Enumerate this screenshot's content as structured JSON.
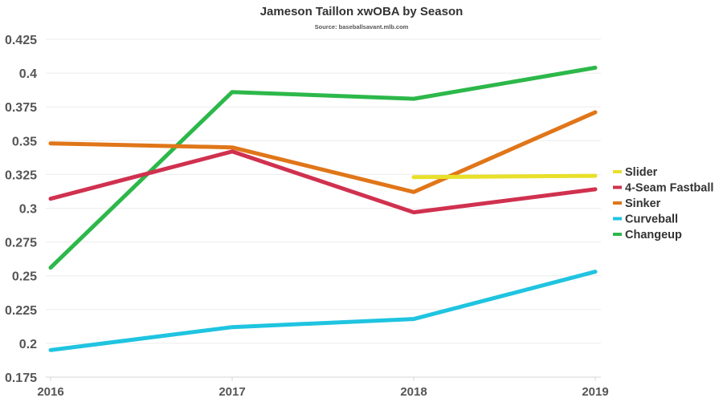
{
  "chart_data": {
    "type": "line",
    "title": "Jameson Taillon xwOBA by Season",
    "subtitle": "Source: baseballsavant.mlb.com",
    "xlabel": "",
    "ylabel": "",
    "x": [
      "2016",
      "2017",
      "2018",
      "2019"
    ],
    "ylim": [
      0.175,
      0.425
    ],
    "yticks": [
      "0.425",
      "0.4",
      "0.375",
      "0.35",
      "0.325",
      "0.3",
      "0.275",
      "0.25",
      "0.225",
      "0.2",
      "0.175"
    ],
    "ytick_values": [
      0.425,
      0.4,
      0.375,
      0.35,
      0.325,
      0.3,
      0.275,
      0.25,
      0.225,
      0.2,
      0.175
    ],
    "grid": true,
    "legend_position": "right",
    "series": [
      {
        "name": "Slider",
        "color": "#e8e02a",
        "values": [
          null,
          null,
          0.323,
          0.324
        ]
      },
      {
        "name": "4-Seam Fastball",
        "color": "#d0314f",
        "values": [
          0.307,
          0.342,
          0.297,
          0.314
        ]
      },
      {
        "name": "Sinker",
        "color": "#e07619",
        "values": [
          0.348,
          0.345,
          0.312,
          0.371
        ]
      },
      {
        "name": "Curveball",
        "color": "#1fc4e0",
        "values": [
          0.195,
          0.212,
          0.218,
          0.253
        ]
      },
      {
        "name": "Changeup",
        "color": "#2cb84a",
        "values": [
          0.256,
          0.386,
          0.381,
          0.404
        ]
      }
    ]
  }
}
